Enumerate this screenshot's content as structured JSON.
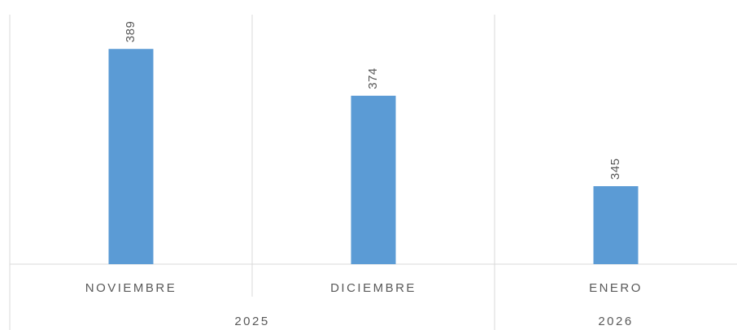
{
  "chart_data": {
    "type": "bar",
    "categories": [
      "NOVIEMBRE",
      "DICIEMBRE",
      "ENERO"
    ],
    "groups": [
      {
        "label": "2025",
        "count": 2
      },
      {
        "label": "2026",
        "count": 1
      }
    ],
    "values": [
      389,
      374,
      345
    ],
    "color": "#5b9bd5",
    "ylim": [
      320,
      400
    ],
    "value_labels_rotated": true
  }
}
